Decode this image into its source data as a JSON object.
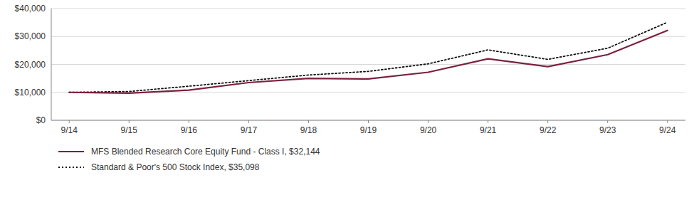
{
  "chart_data": {
    "type": "line",
    "categories": [
      "9/14",
      "9/15",
      "9/16",
      "9/17",
      "9/18",
      "9/19",
      "9/20",
      "9/21",
      "9/22",
      "9/23",
      "9/24"
    ],
    "series": [
      {
        "name": "MFS Blended Research Core Equity Fund - Class I, $32,144",
        "color": "#7B2040",
        "line_style": "solid",
        "values": [
          10000,
          9700,
          10800,
          13500,
          15000,
          14800,
          17200,
          22000,
          19200,
          23500,
          32144
        ]
      },
      {
        "name": "Standard & Poor's 500 Stock Index, $35,098",
        "color": "#111111",
        "line_style": "dotted",
        "values": [
          10000,
          10300,
          12200,
          14200,
          16200,
          17500,
          20200,
          25200,
          21800,
          25800,
          35098
        ]
      }
    ],
    "ylim": [
      0,
      40000
    ],
    "yticks": [
      {
        "value": 0,
        "label": "$0"
      },
      {
        "value": 10000,
        "label": "$10,000"
      },
      {
        "value": 20000,
        "label": "$20,000"
      },
      {
        "value": 30000,
        "label": "$30,000"
      },
      {
        "value": 40000,
        "label": "$40,000"
      }
    ],
    "grid": true,
    "legend": "bottom"
  }
}
